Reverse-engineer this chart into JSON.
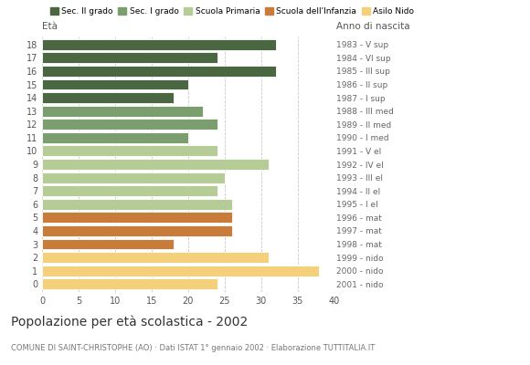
{
  "ages": [
    18,
    17,
    16,
    15,
    14,
    13,
    12,
    11,
    10,
    9,
    8,
    7,
    6,
    5,
    4,
    3,
    2,
    1,
    0
  ],
  "values": [
    32,
    24,
    32,
    20,
    18,
    22,
    24,
    20,
    24,
    31,
    25,
    24,
    26,
    26,
    26,
    18,
    31,
    38,
    24
  ],
  "right_labels": [
    "1983 - V sup",
    "1984 - VI sup",
    "1985 - III sup",
    "1986 - II sup",
    "1987 - I sup",
    "1988 - III med",
    "1989 - II med",
    "1990 - I med",
    "1991 - V el",
    "1992 - IV el",
    "1993 - III el",
    "1994 - II el",
    "1995 - I el",
    "1996 - mat",
    "1997 - mat",
    "1998 - mat",
    "1999 - nido",
    "2000 - nido",
    "2001 - nido"
  ],
  "colors": [
    "#4a6741",
    "#4a6741",
    "#4a6741",
    "#4a6741",
    "#4a6741",
    "#7a9e6e",
    "#7a9e6e",
    "#7a9e6e",
    "#b5cc96",
    "#b5cc96",
    "#b5cc96",
    "#b5cc96",
    "#b5cc96",
    "#c97c3a",
    "#c97c3a",
    "#c97c3a",
    "#f5d07a",
    "#f5d07a",
    "#f5d07a"
  ],
  "legend_labels": [
    "Sec. II grado",
    "Sec. I grado",
    "Scuola Primaria",
    "Scuola dell'Infanzia",
    "Asilo Nido"
  ],
  "legend_colors": [
    "#4a6741",
    "#7a9e6e",
    "#b5cc96",
    "#c97c3a",
    "#f5d07a"
  ],
  "title": "Popolazione per età scolastica - 2002",
  "subtitle": "COMUNE DI SAINT-CHRISTOPHE (AO) · Dati ISTAT 1° gennaio 2002 · Elaborazione TUTTITALIA.IT",
  "xlabel_left": "Età",
  "xlabel_right": "Anno di nascita",
  "xlim": [
    0,
    40
  ],
  "xticks": [
    0,
    5,
    10,
    15,
    20,
    25,
    30,
    35,
    40
  ],
  "background_color": "#ffffff",
  "grid_color": "#bbbbbb"
}
